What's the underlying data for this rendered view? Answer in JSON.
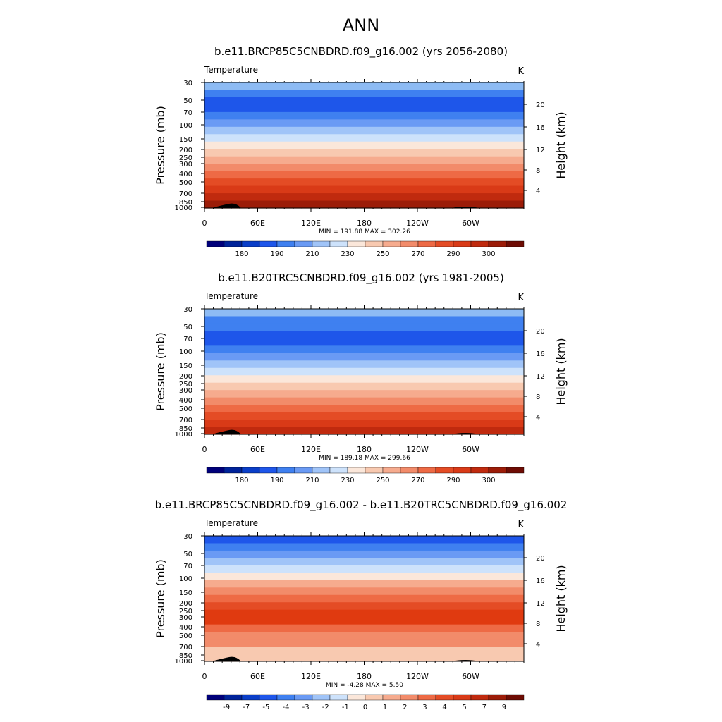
{
  "main_title": "ANN",
  "chart_data": [
    {
      "type": "heatmap",
      "title": "b.e11.BRCP85C5CNBDRD.f09_g16.002 (yrs 2056-2080)",
      "variable_label": "Temperature",
      "units": "K",
      "ylabel": "Pressure (mb)",
      "y2label": "Height (km)",
      "x_ticks": [
        "0",
        "60E",
        "120E",
        "180",
        "120W",
        "60W"
      ],
      "pressure_ticks": [
        "30",
        "50",
        "70",
        "100",
        "150",
        "200",
        "250",
        "300",
        "400",
        "500",
        "700",
        "850",
        "1000"
      ],
      "height_ticks": [
        "20",
        "16",
        "12",
        "8",
        "4"
      ],
      "stats": "MIN = 191.88  MAX = 302.26",
      "colorbar_labels": [
        "180",
        "190",
        "210",
        "230",
        "250",
        "270",
        "290",
        "300"
      ],
      "band_colors": [
        "#8dbbf4",
        "#3f80f0",
        "#1e56ea",
        "#1e56ea",
        "#3f80f0",
        "#6a9af4",
        "#a0c4f8",
        "#cde2fb",
        "#fbe7da",
        "#f8c9b0",
        "#f6ab8e",
        "#f28b6a",
        "#ee6a45",
        "#e44c25",
        "#d93a17",
        "#c02a0e",
        "#9c1c08"
      ]
    },
    {
      "type": "heatmap",
      "title": "b.e11.B20TRC5CNBDRD.f09_g16.002 (yrs 1981-2005)",
      "variable_label": "Temperature",
      "units": "K",
      "ylabel": "Pressure (mb)",
      "y2label": "Height (km)",
      "x_ticks": [
        "0",
        "60E",
        "120E",
        "180",
        "120W",
        "60W"
      ],
      "pressure_ticks": [
        "30",
        "50",
        "70",
        "100",
        "150",
        "200",
        "250",
        "300",
        "400",
        "500",
        "700",
        "850",
        "1000"
      ],
      "height_ticks": [
        "20",
        "16",
        "12",
        "8",
        "4"
      ],
      "stats": "MIN = 189.18  MAX = 299.66",
      "colorbar_labels": [
        "180",
        "190",
        "210",
        "230",
        "250",
        "270",
        "290",
        "300"
      ],
      "band_colors": [
        "#8dbbf4",
        "#3f80f0",
        "#3f80f0",
        "#1e56ea",
        "#1e56ea",
        "#3f80f0",
        "#6a9af4",
        "#a0c4f8",
        "#cde2fb",
        "#fbe7da",
        "#f8c9b0",
        "#f6ab8e",
        "#f28b6a",
        "#ee6a45",
        "#e44c25",
        "#d93a17",
        "#c02a0e"
      ]
    },
    {
      "type": "heatmap",
      "title": "b.e11.BRCP85C5CNBDRD.f09_g16.002 - b.e11.B20TRC5CNBDRD.f09_g16.002",
      "variable_label": "Temperature",
      "units": "K",
      "ylabel": "Pressure (mb)",
      "y2label": "Height (km)",
      "x_ticks": [
        "0",
        "60E",
        "120E",
        "180",
        "120W",
        "60W"
      ],
      "pressure_ticks": [
        "30",
        "50",
        "70",
        "100",
        "150",
        "200",
        "250",
        "300",
        "400",
        "500",
        "700",
        "850",
        "1000"
      ],
      "height_ticks": [
        "20",
        "16",
        "12",
        "8",
        "4"
      ],
      "stats": "MIN =  -4.28  MAX =   5.50",
      "colorbar_labels": [
        "-9",
        "-7",
        "-5",
        "-4",
        "-3",
        "-2",
        "-1",
        "0",
        "1",
        "2",
        "3",
        "4",
        "5",
        "7",
        "9"
      ],
      "band_colors": [
        "#1e56ea",
        "#3f80f0",
        "#6a9af4",
        "#a0c4f8",
        "#cde2fb",
        "#fbe7da",
        "#f6ab8e",
        "#f28b6a",
        "#ee6a45",
        "#e44c25",
        "#e03a10",
        "#e03a10",
        "#ee6a45",
        "#f28b6a",
        "#f28b6a",
        "#f8c9b0",
        "#f8c9b0"
      ]
    }
  ],
  "colorbar_colors": [
    "#00007a",
    "#00239a",
    "#0a3ec8",
    "#1e56ea",
    "#3f80f0",
    "#6a9af4",
    "#a0c4f8",
    "#cde2fb",
    "#fbe7da",
    "#f8c9b0",
    "#f6ab8e",
    "#f28b6a",
    "#ee6a45",
    "#e44c25",
    "#d93a17",
    "#c02a0e",
    "#9c1c08",
    "#6e0c04"
  ]
}
